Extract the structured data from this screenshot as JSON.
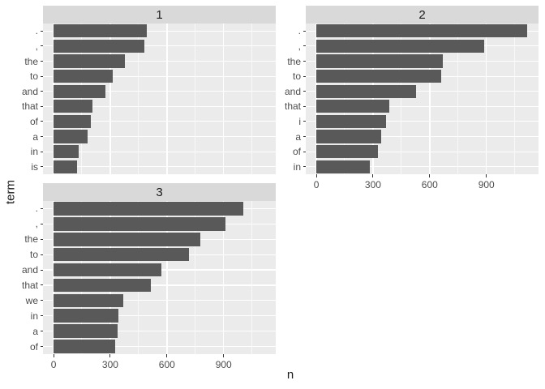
{
  "figure": {
    "colors": {
      "background": "#FFFFFF",
      "panel_bg": "#EBEBEB",
      "strip_bg": "#D9D9D9",
      "strip_text": "#1A1A1A",
      "bar_fill": "#595959",
      "grid": "#FFFFFF",
      "axis_text": "#4D4D4D",
      "tick": "#333333"
    }
  },
  "chart_data": {
    "type": "bar",
    "orientation": "horizontal",
    "title": "",
    "xlabel": "n",
    "ylabel": "term",
    "x_ticks": [
      0,
      300,
      600,
      900
    ],
    "x_minor_ticks": [
      150,
      450,
      750,
      1050
    ],
    "xlim": [
      -56,
      1176
    ],
    "grid": "on",
    "legend": "none",
    "facet_layout": "2-columns-3-panels",
    "facets": [
      {
        "label": "1",
        "categories": [
          ".",
          ",",
          "the",
          "to",
          "and",
          "that",
          "of",
          "a",
          "in",
          "is"
        ],
        "values": [
          492,
          481,
          376,
          314,
          274,
          208,
          197,
          181,
          134,
          126
        ]
      },
      {
        "label": "2",
        "categories": [
          ".",
          ",",
          "the",
          "to",
          "and",
          "that",
          "i",
          "a",
          "of",
          "in"
        ],
        "values": [
          1116,
          890,
          669,
          662,
          527,
          386,
          368,
          344,
          327,
          284
        ]
      },
      {
        "label": "3",
        "categories": [
          ".",
          ",",
          "the",
          "to",
          "and",
          "that",
          "we",
          "in",
          "a",
          "of"
        ],
        "values": [
          1006,
          910,
          778,
          715,
          570,
          516,
          370,
          342,
          338,
          328
        ]
      }
    ]
  }
}
